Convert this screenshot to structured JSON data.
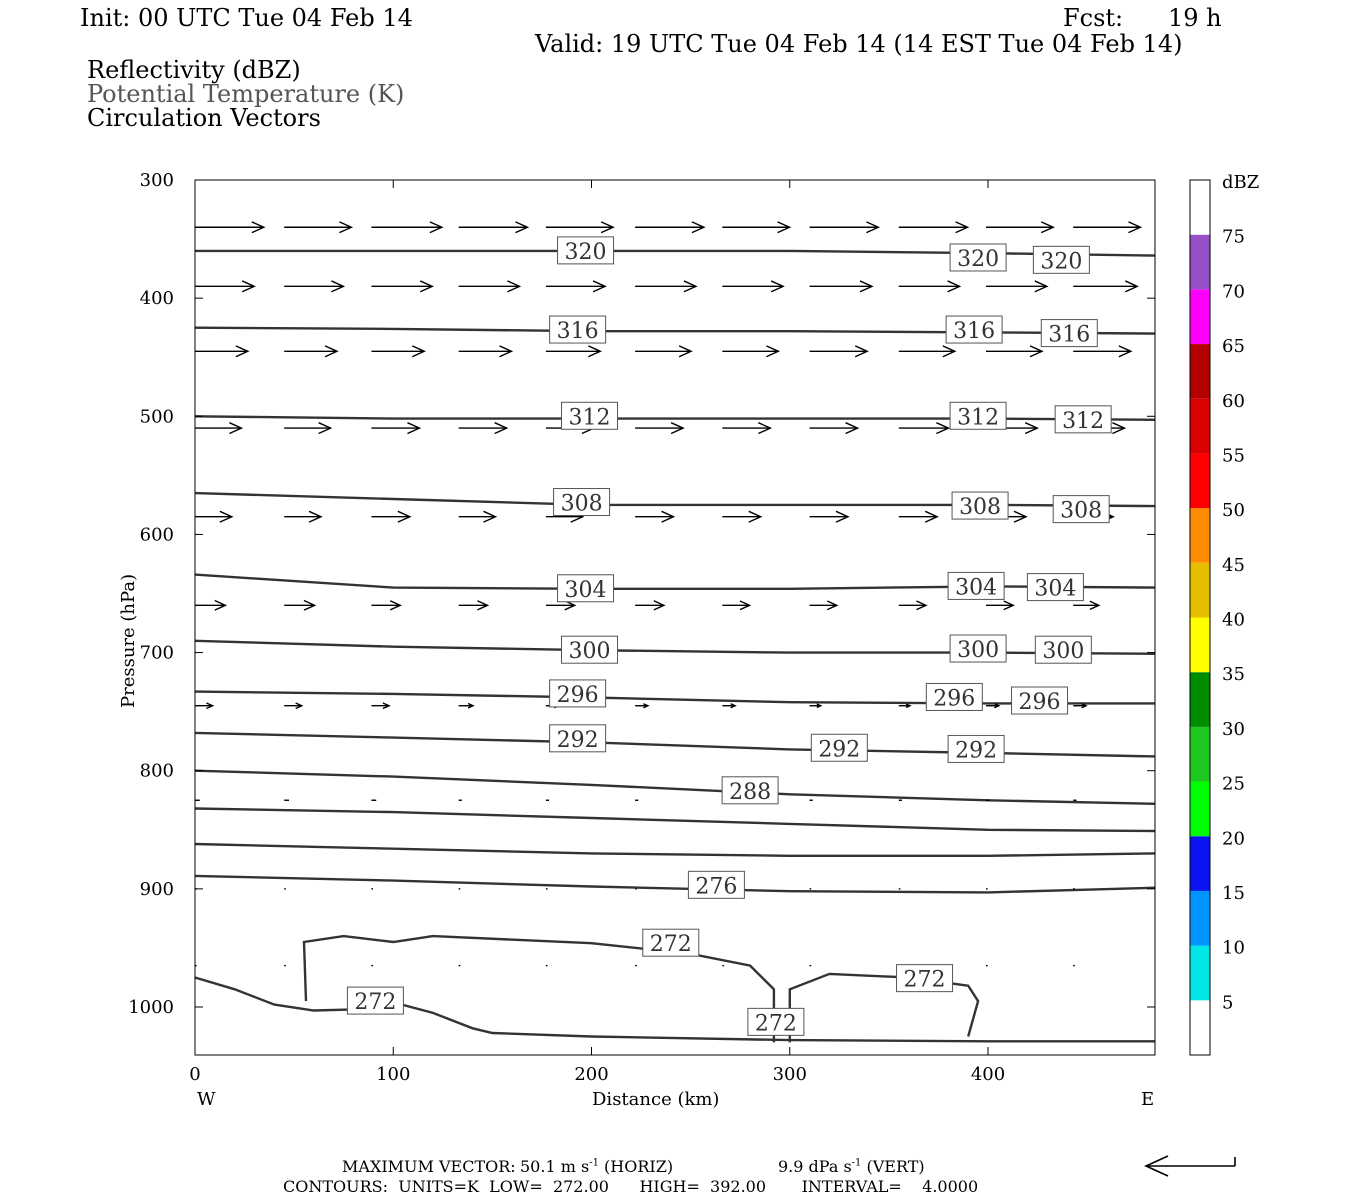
{
  "header": {
    "init": "Init: 00 UTC Tue 04 Feb 14",
    "fcst_label": "Fcst:",
    "fcst_value": "19 h",
    "valid": "Valid: 19 UTC Tue 04 Feb 14 (14 EST Tue 04 Feb 14)"
  },
  "fields": [
    "Reflectivity (dBZ)",
    "Potential Temperature (K)",
    "Circulation Vectors"
  ],
  "footer": {
    "max_vector_label": "MAXIMUM VECTOR:",
    "horiz_value": "50.1 m s",
    "horiz_unit": "(HORIZ)",
    "vert_value": "9.9 dPa s",
    "vert_unit": "(VERT)",
    "exp": "-1",
    "contours": "CONTOURS:  UNITS=K  LOW=  272.00      HIGH=  392.00       INTERVAL=    4.0000"
  },
  "chart_data": {
    "type": "line",
    "xlabel": "Distance (km)",
    "ylabel": "Pressure (hPa)",
    "xlim": [
      0,
      485
    ],
    "ylim": [
      300,
      1040
    ],
    "y_inverted": true,
    "x_ticks": [
      0,
      100,
      200,
      300,
      400
    ],
    "y_ticks": [
      300,
      400,
      500,
      600,
      700,
      800,
      900,
      1000
    ],
    "x_end_labels": {
      "left": "W",
      "right": "E"
    },
    "colorbar": {
      "unit": "dBZ",
      "ticks": [
        5,
        10,
        15,
        20,
        25,
        30,
        35,
        40,
        45,
        50,
        55,
        60,
        65,
        70,
        75
      ],
      "colors": [
        "#ffffff",
        "#00e6e6",
        "#0096ff",
        "#0a14f0",
        "#00ff00",
        "#1ec81e",
        "#008c00",
        "#ffff00",
        "#e6be00",
        "#ff8c00",
        "#ff0000",
        "#dc0000",
        "#b40000",
        "#ff00ff",
        "#9650c8",
        "#ffffff"
      ]
    },
    "series": [
      {
        "values": [
          [
            0,
            360
          ],
          [
            100,
            360
          ],
          [
            200,
            360
          ],
          [
            300,
            360
          ],
          [
            400,
            362
          ],
          [
            485,
            364
          ]
        ]
      },
      {
        "values": [
          [
            0,
            425
          ],
          [
            100,
            426
          ],
          [
            200,
            428
          ],
          [
            300,
            428
          ],
          [
            400,
            429
          ],
          [
            485,
            430
          ]
        ]
      },
      {
        "values": [
          [
            0,
            500
          ],
          [
            100,
            502
          ],
          [
            200,
            502
          ],
          [
            300,
            502
          ],
          [
            400,
            502
          ],
          [
            485,
            503
          ]
        ]
      },
      {
        "values": [
          [
            0,
            565
          ],
          [
            100,
            570
          ],
          [
            200,
            575
          ],
          [
            300,
            575
          ],
          [
            400,
            575
          ],
          [
            485,
            576
          ]
        ]
      },
      {
        "values": [
          [
            0,
            634
          ],
          [
            100,
            645
          ],
          [
            200,
            646
          ],
          [
            300,
            646
          ],
          [
            400,
            644
          ],
          [
            485,
            645
          ]
        ]
      },
      {
        "values": [
          [
            0,
            690
          ],
          [
            100,
            695
          ],
          [
            200,
            698
          ],
          [
            300,
            700
          ],
          [
            400,
            700
          ],
          [
            485,
            701
          ]
        ]
      },
      {
        "values": [
          [
            0,
            733
          ],
          [
            100,
            735
          ],
          [
            200,
            738
          ],
          [
            300,
            742
          ],
          [
            400,
            743
          ],
          [
            485,
            743
          ]
        ]
      },
      {
        "values": [
          [
            0,
            768
          ],
          [
            100,
            772
          ],
          [
            200,
            776
          ],
          [
            300,
            782
          ],
          [
            400,
            785
          ],
          [
            485,
            788
          ]
        ]
      },
      {
        "values": [
          [
            0,
            800
          ],
          [
            100,
            805
          ],
          [
            200,
            812
          ],
          [
            300,
            820
          ],
          [
            400,
            825
          ],
          [
            485,
            828
          ]
        ]
      },
      {
        "values": [
          [
            0,
            832
          ],
          [
            100,
            835
          ],
          [
            200,
            840
          ],
          [
            300,
            845
          ],
          [
            400,
            850
          ],
          [
            485,
            851
          ]
        ]
      },
      {
        "values": [
          [
            0,
            862
          ],
          [
            100,
            866
          ],
          [
            200,
            870
          ],
          [
            300,
            872
          ],
          [
            400,
            872
          ],
          [
            485,
            870
          ]
        ]
      },
      {
        "values": [
          [
            0,
            889
          ],
          [
            100,
            893
          ],
          [
            200,
            898
          ],
          [
            300,
            902
          ],
          [
            400,
            903
          ],
          [
            485,
            899
          ]
        ]
      },
      {
        "values": [
          [
            0,
            975
          ],
          [
            20,
            985
          ],
          [
            40,
            998
          ],
          [
            60,
            1003
          ],
          [
            80,
            1002
          ],
          [
            100,
            996
          ],
          [
            120,
            1005
          ],
          [
            140,
            1018
          ],
          [
            150,
            1022
          ],
          [
            200,
            1025
          ],
          [
            300,
            1028
          ],
          [
            400,
            1029
          ],
          [
            485,
            1029
          ]
        ]
      },
      {
        "values": [
          [
            56,
            995
          ],
          [
            55,
            945
          ],
          [
            75,
            940
          ],
          [
            100,
            945
          ],
          [
            120,
            940
          ],
          [
            200,
            946
          ],
          [
            250,
            955
          ],
          [
            280,
            965
          ],
          [
            292,
            985
          ],
          [
            292,
            1030
          ]
        ]
      },
      {
        "values": [
          [
            300,
            1030
          ],
          [
            300,
            985
          ],
          [
            320,
            972
          ],
          [
            360,
            975
          ],
          [
            390,
            982
          ],
          [
            395,
            995
          ],
          [
            390,
            1025
          ]
        ]
      }
    ],
    "contour_labels": [
      {
        "text": "320",
        "x": 197,
        "p": 360
      },
      {
        "text": "320",
        "x": 395,
        "p": 366
      },
      {
        "text": "320",
        "x": 437,
        "p": 368
      },
      {
        "text": "316",
        "x": 193,
        "p": 427
      },
      {
        "text": "316",
        "x": 393,
        "p": 427
      },
      {
        "text": "316",
        "x": 441,
        "p": 430
      },
      {
        "text": "312",
        "x": 199,
        "p": 500
      },
      {
        "text": "312",
        "x": 395,
        "p": 500
      },
      {
        "text": "312",
        "x": 448,
        "p": 503
      },
      {
        "text": "308",
        "x": 195,
        "p": 573
      },
      {
        "text": "308",
        "x": 396,
        "p": 576
      },
      {
        "text": "308",
        "x": 447,
        "p": 579
      },
      {
        "text": "304",
        "x": 197,
        "p": 646
      },
      {
        "text": "304",
        "x": 394,
        "p": 644
      },
      {
        "text": "304",
        "x": 434,
        "p": 645
      },
      {
        "text": "300",
        "x": 199,
        "p": 698
      },
      {
        "text": "300",
        "x": 395,
        "p": 697
      },
      {
        "text": "300",
        "x": 438,
        "p": 698
      },
      {
        "text": "296",
        "x": 193,
        "p": 735
      },
      {
        "text": "296",
        "x": 383,
        "p": 738
      },
      {
        "text": "296",
        "x": 426,
        "p": 741
      },
      {
        "text": "292",
        "x": 193,
        "p": 773
      },
      {
        "text": "292",
        "x": 325,
        "p": 781
      },
      {
        "text": "292",
        "x": 394,
        "p": 782
      },
      {
        "text": "288",
        "x": 280,
        "p": 817
      },
      {
        "text": "276",
        "x": 263,
        "p": 897
      },
      {
        "text": "272",
        "x": 240,
        "p": 946
      },
      {
        "text": "272",
        "x": 368,
        "p": 976
      },
      {
        "text": "272",
        "x": 91,
        "p": 995
      },
      {
        "text": "272",
        "x": 293,
        "p": 1013
      }
    ],
    "vectors": {
      "x": [
        0,
        45,
        89,
        133,
        177,
        222,
        266,
        310,
        355,
        399,
        443
      ],
      "rows": [
        {
          "p": 340,
          "u": [
            43,
            42,
            44,
            43,
            42,
            43,
            42,
            43,
            43,
            42,
            42
          ]
        },
        {
          "p": 390,
          "u": [
            37,
            37,
            38,
            38,
            37,
            38,
            38,
            39,
            38,
            38,
            40
          ]
        },
        {
          "p": 445,
          "u": [
            33,
            33,
            33,
            33,
            34,
            35,
            35,
            36,
            35,
            35,
            36
          ]
        },
        {
          "p": 510,
          "u": [
            29,
            29,
            30,
            30,
            30,
            30,
            30,
            30,
            31,
            32,
            32
          ]
        },
        {
          "p": 585,
          "u": [
            23,
            23,
            24,
            23,
            23,
            24,
            24,
            24,
            24,
            25,
            25
          ]
        },
        {
          "p": 660,
          "u": [
            19,
            19,
            18,
            18,
            18,
            18,
            17,
            17,
            17,
            17,
            16
          ]
        },
        {
          "p": 745,
          "u": [
            11,
            11,
            11,
            9,
            8,
            8,
            8,
            7,
            7,
            8,
            8
          ]
        },
        {
          "p": 825,
          "u": [
            3,
            3,
            3,
            2,
            2,
            2,
            2,
            2,
            2,
            2,
            2
          ]
        },
        {
          "p": 900,
          "u": [
            1,
            1,
            1,
            1,
            1,
            1,
            1,
            1,
            1,
            1,
            1
          ]
        },
        {
          "p": 965,
          "u": [
            1,
            1,
            1,
            1,
            1,
            1,
            1,
            1,
            1,
            1,
            1
          ]
        }
      ]
    }
  }
}
